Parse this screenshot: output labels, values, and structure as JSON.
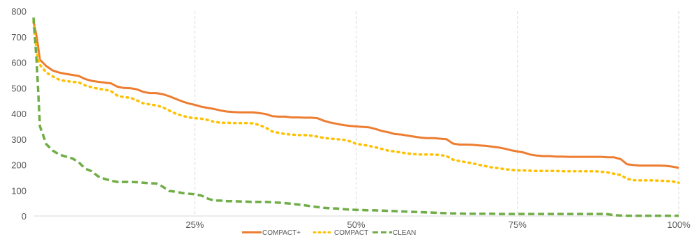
{
  "chart_data": {
    "type": "line",
    "title": "",
    "xlabel": "",
    "ylabel": "",
    "ylim": [
      0,
      800
    ],
    "yticks": [
      0,
      100,
      200,
      300,
      400,
      500,
      600,
      700,
      800
    ],
    "xlim": [
      0,
      100
    ],
    "xticks": [
      25,
      50,
      75,
      100
    ],
    "xtick_suffix": "%",
    "grid": "vertical dashed lines at x ticks",
    "legend_position": "bottom",
    "series": [
      {
        "name": "COMPACT+",
        "color": "#ED7D31",
        "style": "solid",
        "points": [
          [
            0,
            760
          ],
          [
            0.5,
            700
          ],
          [
            1,
            610
          ],
          [
            2,
            585
          ],
          [
            3,
            568
          ],
          [
            4,
            560
          ],
          [
            5,
            555
          ],
          [
            6,
            551
          ],
          [
            7,
            547
          ],
          [
            8,
            535
          ],
          [
            9,
            528
          ],
          [
            10,
            524
          ],
          [
            11,
            521
          ],
          [
            12,
            518
          ],
          [
            13,
            505
          ],
          [
            14,
            500
          ],
          [
            15,
            499
          ],
          [
            16,
            495
          ],
          [
            17,
            485
          ],
          [
            18,
            480
          ],
          [
            19,
            480
          ],
          [
            20,
            476
          ],
          [
            21,
            468
          ],
          [
            22,
            458
          ],
          [
            23,
            448
          ],
          [
            24,
            440
          ],
          [
            25,
            434
          ],
          [
            26,
            427
          ],
          [
            27,
            422
          ],
          [
            28,
            418
          ],
          [
            29,
            412
          ],
          [
            30,
            408
          ],
          [
            31,
            406
          ],
          [
            32,
            405
          ],
          [
            33,
            405
          ],
          [
            34,
            405
          ],
          [
            35,
            402
          ],
          [
            36,
            398
          ],
          [
            37,
            390
          ],
          [
            38,
            388
          ],
          [
            39,
            388
          ],
          [
            40,
            385
          ],
          [
            41,
            385
          ],
          [
            42,
            384
          ],
          [
            43,
            384
          ],
          [
            44,
            382
          ],
          [
            45,
            372
          ],
          [
            46,
            365
          ],
          [
            47,
            360
          ],
          [
            48,
            355
          ],
          [
            49,
            352
          ],
          [
            50,
            350
          ],
          [
            51,
            348
          ],
          [
            52,
            346
          ],
          [
            53,
            340
          ],
          [
            54,
            332
          ],
          [
            55,
            327
          ],
          [
            56,
            320
          ],
          [
            57,
            318
          ],
          [
            58,
            314
          ],
          [
            59,
            310
          ],
          [
            60,
            306
          ],
          [
            61,
            304
          ],
          [
            62,
            304
          ],
          [
            63,
            302
          ],
          [
            64,
            300
          ],
          [
            65,
            283
          ],
          [
            66,
            279
          ],
          [
            67,
            279
          ],
          [
            68,
            278
          ],
          [
            69,
            276
          ],
          [
            70,
            274
          ],
          [
            71,
            271
          ],
          [
            72,
            268
          ],
          [
            73,
            263
          ],
          [
            74,
            257
          ],
          [
            75,
            252
          ],
          [
            76,
            248
          ],
          [
            77,
            240
          ],
          [
            78,
            236
          ],
          [
            79,
            234
          ],
          [
            80,
            234
          ],
          [
            81,
            232
          ],
          [
            82,
            232
          ],
          [
            83,
            231
          ],
          [
            84,
            231
          ],
          [
            85,
            231
          ],
          [
            86,
            231
          ],
          [
            87,
            231
          ],
          [
            88,
            231
          ],
          [
            89,
            229
          ],
          [
            90,
            229
          ],
          [
            91,
            222
          ],
          [
            92,
            202
          ],
          [
            93,
            199
          ],
          [
            94,
            197
          ],
          [
            95,
            197
          ],
          [
            96,
            197
          ],
          [
            97,
            197
          ],
          [
            98,
            196
          ],
          [
            99,
            193
          ],
          [
            100,
            188
          ]
        ]
      },
      {
        "name": "COMPACT",
        "color": "#FFC000",
        "style": "dotted",
        "points": [
          [
            0,
            760
          ],
          [
            0.5,
            640
          ],
          [
            1,
            590
          ],
          [
            2,
            560
          ],
          [
            3,
            545
          ],
          [
            4,
            532
          ],
          [
            5,
            527
          ],
          [
            6,
            524
          ],
          [
            7,
            522
          ],
          [
            8,
            510
          ],
          [
            9,
            503
          ],
          [
            10,
            497
          ],
          [
            11,
            494
          ],
          [
            12,
            488
          ],
          [
            13,
            470
          ],
          [
            14,
            464
          ],
          [
            15,
            462
          ],
          [
            16,
            452
          ],
          [
            17,
            440
          ],
          [
            18,
            436
          ],
          [
            19,
            432
          ],
          [
            20,
            425
          ],
          [
            21,
            412
          ],
          [
            22,
            400
          ],
          [
            23,
            392
          ],
          [
            24,
            385
          ],
          [
            25,
            382
          ],
          [
            26,
            380
          ],
          [
            27,
            375
          ],
          [
            28,
            368
          ],
          [
            29,
            364
          ],
          [
            30,
            364
          ],
          [
            31,
            363
          ],
          [
            32,
            363
          ],
          [
            33,
            363
          ],
          [
            34,
            362
          ],
          [
            35,
            355
          ],
          [
            36,
            345
          ],
          [
            37,
            330
          ],
          [
            38,
            325
          ],
          [
            39,
            320
          ],
          [
            40,
            318
          ],
          [
            41,
            316
          ],
          [
            42,
            316
          ],
          [
            43,
            314
          ],
          [
            44,
            310
          ],
          [
            45,
            305
          ],
          [
            46,
            302
          ],
          [
            47,
            300
          ],
          [
            48,
            298
          ],
          [
            49,
            292
          ],
          [
            50,
            282
          ],
          [
            51,
            278
          ],
          [
            52,
            274
          ],
          [
            53,
            268
          ],
          [
            54,
            262
          ],
          [
            55,
            255
          ],
          [
            56,
            252
          ],
          [
            57,
            248
          ],
          [
            58,
            244
          ],
          [
            59,
            242
          ],
          [
            60,
            240
          ],
          [
            61,
            240
          ],
          [
            62,
            240
          ],
          [
            63,
            238
          ],
          [
            64,
            234
          ],
          [
            65,
            220
          ],
          [
            66,
            215
          ],
          [
            67,
            210
          ],
          [
            68,
            206
          ],
          [
            69,
            200
          ],
          [
            70,
            195
          ],
          [
            71,
            190
          ],
          [
            72,
            187
          ],
          [
            73,
            183
          ],
          [
            74,
            180
          ],
          [
            75,
            178
          ],
          [
            76,
            178
          ],
          [
            77,
            177
          ],
          [
            78,
            176
          ],
          [
            79,
            176
          ],
          [
            80,
            176
          ],
          [
            81,
            176
          ],
          [
            82,
            175
          ],
          [
            83,
            175
          ],
          [
            84,
            175
          ],
          [
            85,
            175
          ],
          [
            86,
            175
          ],
          [
            87,
            175
          ],
          [
            88,
            173
          ],
          [
            89,
            170
          ],
          [
            90,
            165
          ],
          [
            91,
            160
          ],
          [
            92,
            145
          ],
          [
            93,
            140
          ],
          [
            94,
            139
          ],
          [
            95,
            139
          ],
          [
            96,
            139
          ],
          [
            97,
            138
          ],
          [
            98,
            137
          ],
          [
            99,
            135
          ],
          [
            100,
            130
          ]
        ]
      },
      {
        "name": "CLEAN",
        "color": "#70AD47",
        "style": "dashed",
        "points": [
          [
            0,
            775
          ],
          [
            0.5,
            600
          ],
          [
            1,
            350
          ],
          [
            2,
            280
          ],
          [
            3,
            255
          ],
          [
            4,
            240
          ],
          [
            5,
            232
          ],
          [
            6,
            225
          ],
          [
            7,
            210
          ],
          [
            8,
            185
          ],
          [
            9,
            175
          ],
          [
            10,
            155
          ],
          [
            11,
            145
          ],
          [
            12,
            138
          ],
          [
            13,
            133
          ],
          [
            14,
            133
          ],
          [
            15,
            133
          ],
          [
            16,
            132
          ],
          [
            17,
            130
          ],
          [
            18,
            128
          ],
          [
            19,
            127
          ],
          [
            20,
            115
          ],
          [
            21,
            98
          ],
          [
            22,
            95
          ],
          [
            23,
            90
          ],
          [
            24,
            87
          ],
          [
            25,
            85
          ],
          [
            26,
            80
          ],
          [
            27,
            68
          ],
          [
            28,
            60
          ],
          [
            29,
            60
          ],
          [
            30,
            58
          ],
          [
            31,
            58
          ],
          [
            32,
            57
          ],
          [
            33,
            56
          ],
          [
            34,
            55
          ],
          [
            35,
            55
          ],
          [
            36,
            55
          ],
          [
            37,
            54
          ],
          [
            38,
            52
          ],
          [
            39,
            50
          ],
          [
            40,
            48
          ],
          [
            41,
            45
          ],
          [
            42,
            42
          ],
          [
            43,
            38
          ],
          [
            44,
            35
          ],
          [
            45,
            32
          ],
          [
            46,
            30
          ],
          [
            47,
            29
          ],
          [
            48,
            27
          ],
          [
            49,
            25
          ],
          [
            50,
            24
          ],
          [
            51,
            23
          ],
          [
            52,
            22
          ],
          [
            53,
            22
          ],
          [
            54,
            21
          ],
          [
            55,
            20
          ],
          [
            56,
            19
          ],
          [
            57,
            18
          ],
          [
            58,
            17
          ],
          [
            59,
            16
          ],
          [
            60,
            15
          ],
          [
            61,
            14
          ],
          [
            62,
            13
          ],
          [
            63,
            12
          ],
          [
            64,
            11
          ],
          [
            65,
            10
          ],
          [
            66,
            10
          ],
          [
            67,
            9
          ],
          [
            68,
            9
          ],
          [
            69,
            9
          ],
          [
            70,
            9
          ],
          [
            71,
            9
          ],
          [
            72,
            8
          ],
          [
            73,
            8
          ],
          [
            74,
            8
          ],
          [
            75,
            8
          ],
          [
            76,
            8
          ],
          [
            77,
            8
          ],
          [
            78,
            8
          ],
          [
            79,
            8
          ],
          [
            80,
            8
          ],
          [
            81,
            8
          ],
          [
            82,
            8
          ],
          [
            83,
            8
          ],
          [
            84,
            8
          ],
          [
            85,
            8
          ],
          [
            86,
            8
          ],
          [
            87,
            8
          ],
          [
            88,
            8
          ],
          [
            89,
            7
          ],
          [
            90,
            3
          ],
          [
            91,
            2
          ],
          [
            92,
            1
          ],
          [
            93,
            1
          ],
          [
            94,
            1
          ],
          [
            95,
            1
          ],
          [
            96,
            1
          ],
          [
            97,
            1
          ],
          [
            98,
            1
          ],
          [
            99,
            1
          ],
          [
            100,
            1
          ]
        ]
      }
    ]
  }
}
